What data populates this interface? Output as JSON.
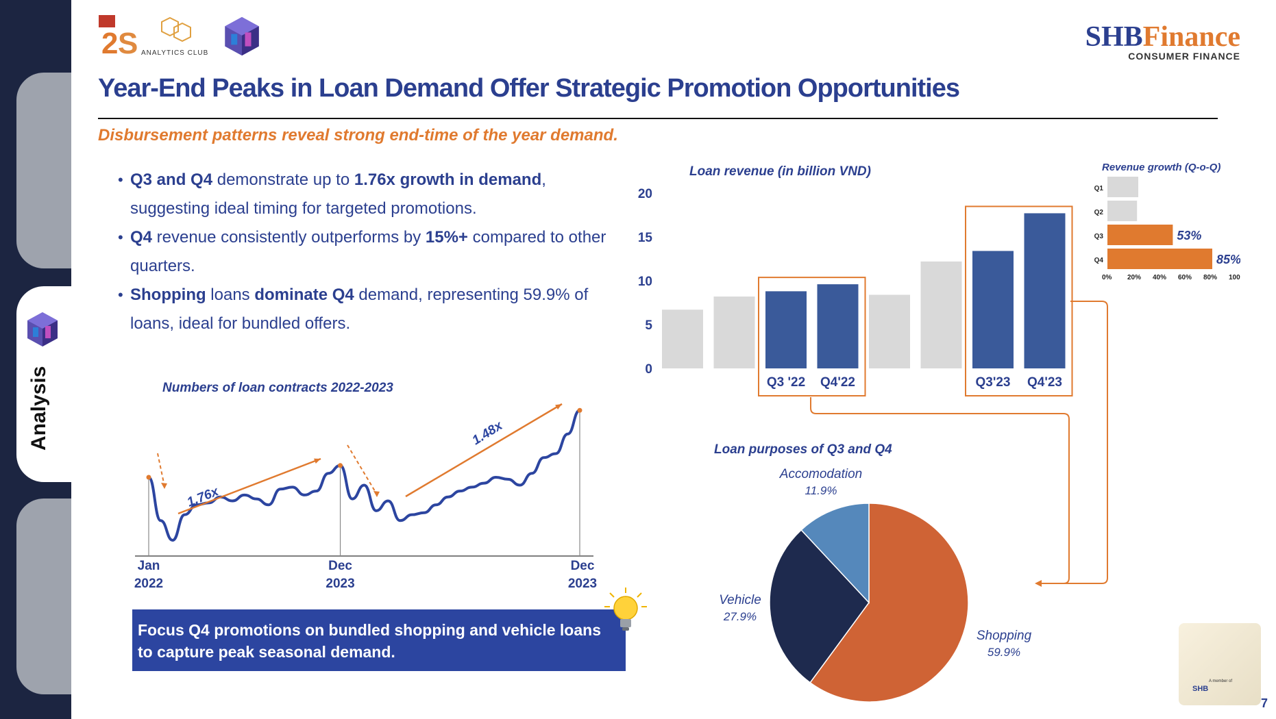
{
  "header": {
    "logo_text": "ANALYTICS CLUB",
    "brand_shb": "SHB",
    "brand_finance": "Finance",
    "brand_tagline": "CONSUMER FINANCE",
    "title": "Year-End Peaks in Loan Demand Offer Strategic Promotion Opportunities",
    "subtitle": "Disbursement patterns reveal strong end-time of the year demand."
  },
  "sidebar": {
    "active_tab": "Analysis"
  },
  "bullets": [
    {
      "parts": [
        [
          "Q3 and Q4",
          true
        ],
        [
          " demonstrate up to ",
          false
        ],
        [
          "1.76x growth in demand",
          true
        ],
        [
          ", suggesting ideal timing for targeted promotions.",
          false
        ]
      ]
    },
    {
      "parts": [
        [
          "Q4",
          true
        ],
        [
          " revenue consistently outperforms by ",
          false
        ],
        [
          "15%+",
          true
        ],
        [
          " compared to other quarters.",
          false
        ]
      ]
    },
    {
      "parts": [
        [
          "Shopping",
          true
        ],
        [
          " loans ",
          false
        ],
        [
          "dominate Q4",
          true
        ],
        [
          " demand, representing 59.9% of loans, ideal for bundled offers.",
          false
        ]
      ]
    }
  ],
  "callout": "Focus Q4 promotions on bundled shopping and vehicle loans to capture peak seasonal demand.",
  "footer": {
    "member_text": "A member of",
    "member_brand": "SHB",
    "page_number": "7"
  },
  "colors": {
    "navy": "#2b3f8f",
    "bar_blue": "#3a5a9a",
    "bar_gray": "#d9d9d9",
    "orange": "#e07a2f",
    "pie_orange": "#cf6335",
    "pie_navy": "#1e2a4e",
    "pie_blue": "#5588bb"
  },
  "chart_data": [
    {
      "type": "bar",
      "title": "Loan revenue (in billion VND)",
      "categories": [
        "",
        "",
        "Q3 '22",
        "Q4'22",
        "",
        "",
        "Q3'23",
        "Q4'23"
      ],
      "values": [
        6.7,
        8.2,
        8.8,
        9.6,
        8.4,
        12.2,
        13.4,
        17.7
      ],
      "highlight": [
        false,
        false,
        true,
        true,
        false,
        false,
        true,
        true
      ],
      "yticks": [
        0,
        5,
        10,
        15,
        20
      ],
      "ylim": [
        0,
        20
      ]
    },
    {
      "type": "bar",
      "orientation": "horizontal",
      "title": "Revenue growth (Q-o-Q)",
      "categories": [
        "Q1",
        "Q2",
        "Q3",
        "Q4"
      ],
      "values": [
        25,
        24,
        53,
        85
      ],
      "labels": [
        "",
        "",
        "53%",
        "85%"
      ],
      "highlight": [
        false,
        false,
        true,
        true
      ],
      "xticks": [
        "0%",
        "20%",
        "40%",
        "60%",
        "80%",
        "100%"
      ],
      "xlim": [
        0,
        100
      ]
    },
    {
      "type": "line",
      "title": "Numbers of loan contracts 2022-2023",
      "x_labels": [
        [
          "Jan",
          "2022"
        ],
        [
          "Dec",
          "2023"
        ],
        [
          "Dec",
          "2023"
        ]
      ],
      "values": [
        60,
        38,
        28,
        41,
        46,
        47,
        50,
        48,
        51,
        49,
        46,
        54,
        55,
        51,
        53,
        62,
        66,
        49,
        56,
        43,
        48,
        38,
        41,
        42,
        46,
        50,
        53,
        55,
        57,
        60,
        59,
        56,
        62,
        70,
        72,
        82,
        94
      ],
      "annotations": [
        {
          "text": "1.76x"
        },
        {
          "text": "1.48x"
        }
      ]
    },
    {
      "type": "pie",
      "title": "Loan purposes of Q3 and Q4",
      "slices": [
        {
          "label": "Shopping",
          "value": 59.9,
          "text": "59.9%"
        },
        {
          "label": "Vehicle",
          "value": 27.9,
          "text": "27.9%"
        },
        {
          "label": "Accomodation",
          "value": 11.9,
          "text": "11.9%"
        }
      ]
    }
  ]
}
